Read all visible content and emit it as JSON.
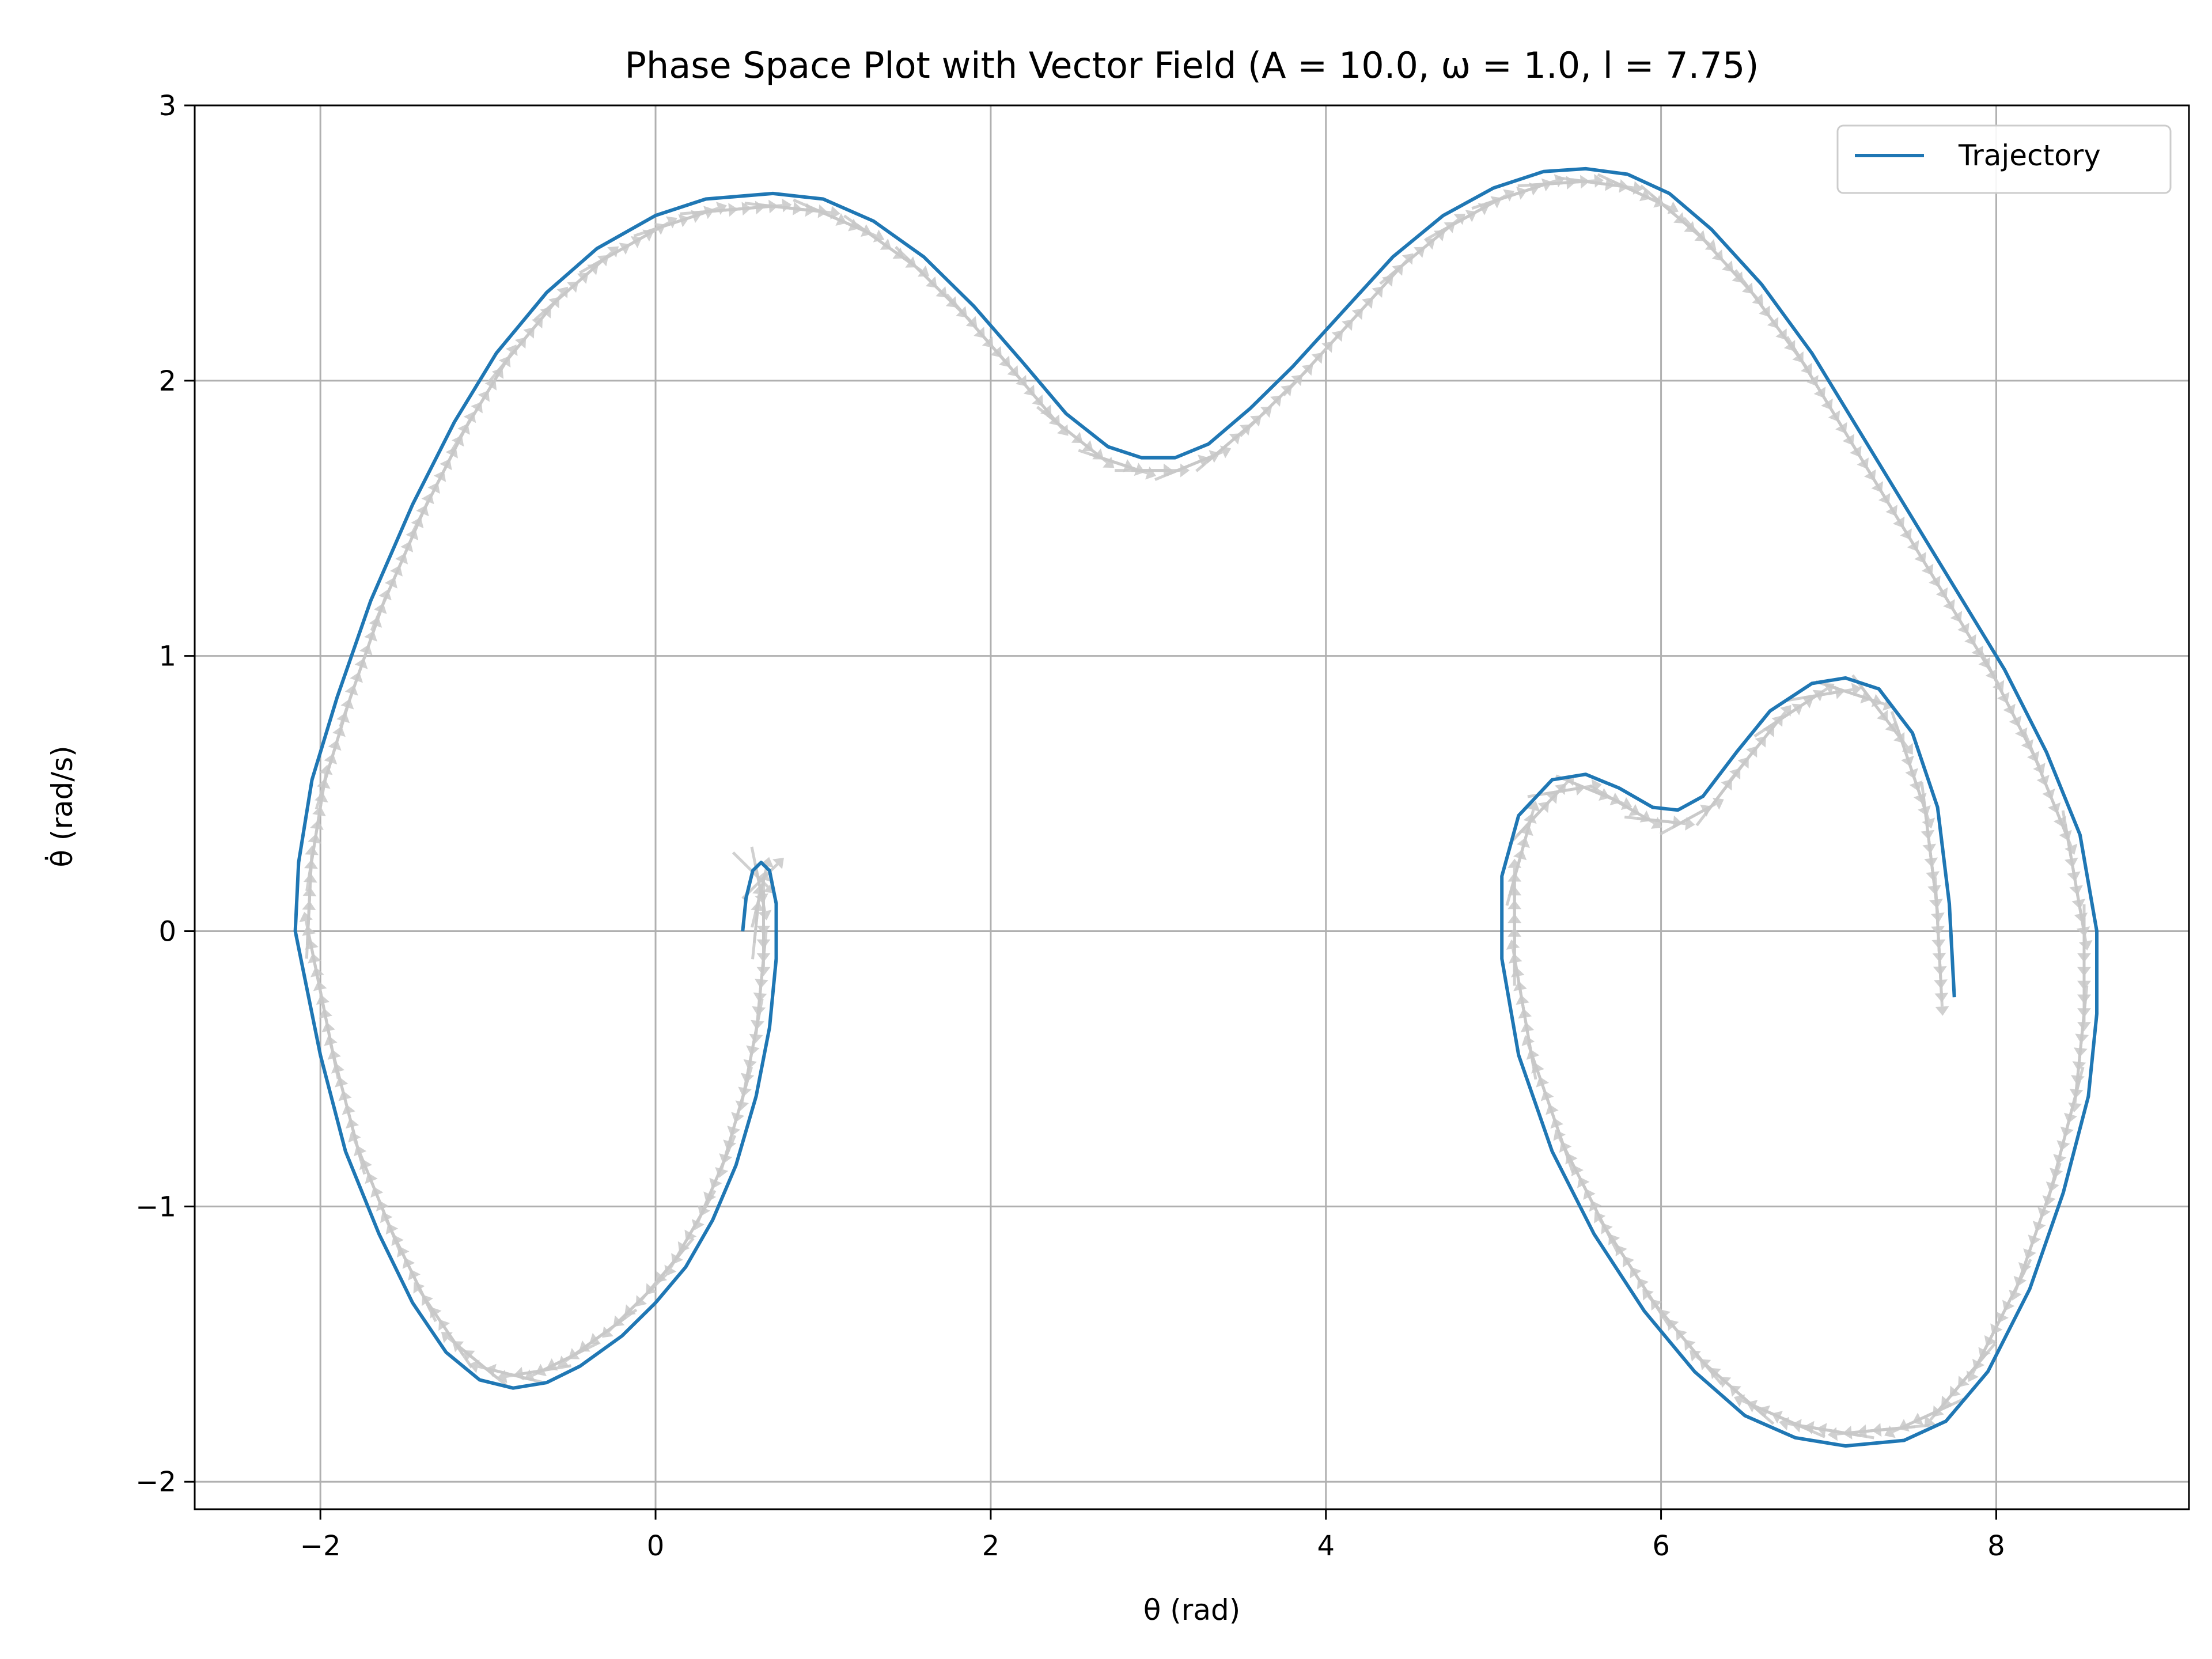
{
  "chart_data": {
    "type": "line",
    "title": "Phase Space Plot with Vector Field (A = 10.0, ω = 1.0, l = 7.75)",
    "xlabel": "θ (rad)",
    "ylabel": "θ̇ (rad/s)",
    "xlim": [
      -2.75,
      9.15
    ],
    "ylim": [
      -2.1,
      3.0
    ],
    "xticks": [
      -2,
      0,
      2,
      4,
      6,
      8
    ],
    "yticks": [
      -2,
      -1,
      0,
      1,
      2,
      3
    ],
    "xtick_labels": [
      "−2",
      "0",
      "2",
      "4",
      "6",
      "8"
    ],
    "ytick_labels": [
      "−2",
      "−1",
      "0",
      "1",
      "2",
      "3"
    ],
    "grid": true,
    "legend_position": "top-right",
    "colors": {
      "trajectory": "#1f77b4",
      "arrows": "#c8c8c8",
      "grid": "#b0b0b0"
    },
    "series": [
      {
        "name": "Trajectory",
        "points": [
          [
            0.52,
            0.0
          ],
          [
            0.54,
            0.12
          ],
          [
            0.58,
            0.22
          ],
          [
            0.63,
            0.25
          ],
          [
            0.68,
            0.22
          ],
          [
            0.72,
            0.1
          ],
          [
            0.72,
            -0.1
          ],
          [
            0.68,
            -0.35
          ],
          [
            0.6,
            -0.6
          ],
          [
            0.48,
            -0.85
          ],
          [
            0.34,
            -1.05
          ],
          [
            0.18,
            -1.22
          ],
          [
            0.0,
            -1.35
          ],
          [
            -0.2,
            -1.47
          ],
          [
            -0.45,
            -1.58
          ],
          [
            -0.65,
            -1.64
          ],
          [
            -0.85,
            -1.66
          ],
          [
            -1.05,
            -1.63
          ],
          [
            -1.25,
            -1.53
          ],
          [
            -1.45,
            -1.35
          ],
          [
            -1.65,
            -1.1
          ],
          [
            -1.85,
            -0.8
          ],
          [
            -2.0,
            -0.45
          ],
          [
            -2.1,
            -0.15
          ],
          [
            -2.15,
            0.0
          ],
          [
            -2.13,
            0.25
          ],
          [
            -2.05,
            0.55
          ],
          [
            -1.9,
            0.85
          ],
          [
            -1.7,
            1.2
          ],
          [
            -1.45,
            1.55
          ],
          [
            -1.2,
            1.85
          ],
          [
            -0.95,
            2.1
          ],
          [
            -0.65,
            2.32
          ],
          [
            -0.35,
            2.48
          ],
          [
            0.0,
            2.6
          ],
          [
            0.3,
            2.66
          ],
          [
            0.7,
            2.68
          ],
          [
            1.0,
            2.66
          ],
          [
            1.3,
            2.58
          ],
          [
            1.6,
            2.45
          ],
          [
            1.9,
            2.27
          ],
          [
            2.2,
            2.06
          ],
          [
            2.45,
            1.88
          ],
          [
            2.7,
            1.76
          ],
          [
            2.9,
            1.72
          ],
          [
            3.1,
            1.72
          ],
          [
            3.3,
            1.77
          ],
          [
            3.55,
            1.9
          ],
          [
            3.8,
            2.05
          ],
          [
            4.1,
            2.25
          ],
          [
            4.4,
            2.45
          ],
          [
            4.7,
            2.6
          ],
          [
            5.0,
            2.7
          ],
          [
            5.3,
            2.76
          ],
          [
            5.55,
            2.77
          ],
          [
            5.8,
            2.75
          ],
          [
            6.05,
            2.68
          ],
          [
            6.3,
            2.55
          ],
          [
            6.6,
            2.35
          ],
          [
            6.9,
            2.1
          ],
          [
            7.2,
            1.8
          ],
          [
            7.5,
            1.5
          ],
          [
            7.8,
            1.2
          ],
          [
            8.05,
            0.95
          ],
          [
            8.3,
            0.65
          ],
          [
            8.5,
            0.35
          ],
          [
            8.6,
            0.0
          ],
          [
            8.6,
            -0.3
          ],
          [
            8.55,
            -0.6
          ],
          [
            8.4,
            -0.95
          ],
          [
            8.2,
            -1.3
          ],
          [
            7.95,
            -1.6
          ],
          [
            7.7,
            -1.78
          ],
          [
            7.45,
            -1.85
          ],
          [
            7.1,
            -1.87
          ],
          [
            6.8,
            -1.84
          ],
          [
            6.5,
            -1.76
          ],
          [
            6.2,
            -1.6
          ],
          [
            5.9,
            -1.38
          ],
          [
            5.6,
            -1.1
          ],
          [
            5.35,
            -0.8
          ],
          [
            5.15,
            -0.45
          ],
          [
            5.05,
            -0.1
          ],
          [
            5.05,
            0.2
          ],
          [
            5.15,
            0.42
          ],
          [
            5.35,
            0.55
          ],
          [
            5.55,
            0.57
          ],
          [
            5.75,
            0.52
          ],
          [
            5.95,
            0.45
          ],
          [
            6.1,
            0.44
          ],
          [
            6.25,
            0.49
          ],
          [
            6.45,
            0.65
          ],
          [
            6.65,
            0.8
          ],
          [
            6.9,
            0.9
          ],
          [
            7.1,
            0.92
          ],
          [
            7.3,
            0.88
          ],
          [
            7.5,
            0.72
          ],
          [
            7.65,
            0.45
          ],
          [
            7.72,
            0.1
          ],
          [
            7.75,
            -0.24
          ]
        ]
      }
    ]
  }
}
